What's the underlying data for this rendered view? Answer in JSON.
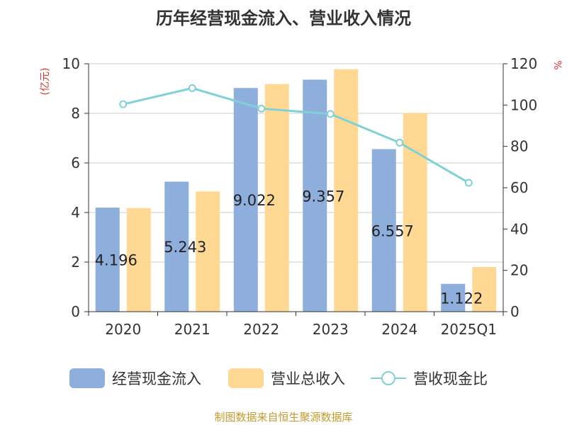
{
  "title": "历年经营现金流入、营业收入情况",
  "source": "制图数据来自恒生聚源数据库",
  "colors": {
    "cash_inflow": "#8eaedb",
    "revenue": "#ffd994",
    "ratio": "#7fd1d6",
    "axis_unit": "#e03030",
    "grid": "#cccccc",
    "text": "#333333"
  },
  "chart_data": {
    "type": "bar",
    "title": "历年经营现金流入、营业收入情况",
    "categories": [
      "2020",
      "2021",
      "2022",
      "2023",
      "2024",
      "2025Q1"
    ],
    "y_left_unit": "(亿元)",
    "y_right_unit": "%",
    "ylim_left": [
      0,
      10
    ],
    "ylim_right": [
      0,
      120
    ],
    "yticks_left": [
      "0",
      "2",
      "4",
      "6",
      "8",
      "10"
    ],
    "yticks_right": [
      "0",
      "20",
      "40",
      "60",
      "80",
      "100",
      "120"
    ],
    "grid": true,
    "legend_position": "bottom",
    "series": [
      {
        "name": "经营现金流入",
        "type": "bar",
        "axis": "left",
        "values": [
          4.196,
          5.243,
          9.022,
          9.357,
          6.557,
          1.122
        ],
        "labels": [
          "4.196",
          "5.243",
          "9.022",
          "9.357",
          "6.557",
          "1.122"
        ]
      },
      {
        "name": "营业总收入",
        "type": "bar",
        "axis": "left",
        "values": [
          4.18,
          4.85,
          9.18,
          9.78,
          8.02,
          1.8
        ]
      },
      {
        "name": "营收现金比",
        "type": "line",
        "axis": "right",
        "values": [
          100.4,
          108.2,
          98.3,
          95.7,
          81.8,
          62.4
        ]
      }
    ]
  }
}
